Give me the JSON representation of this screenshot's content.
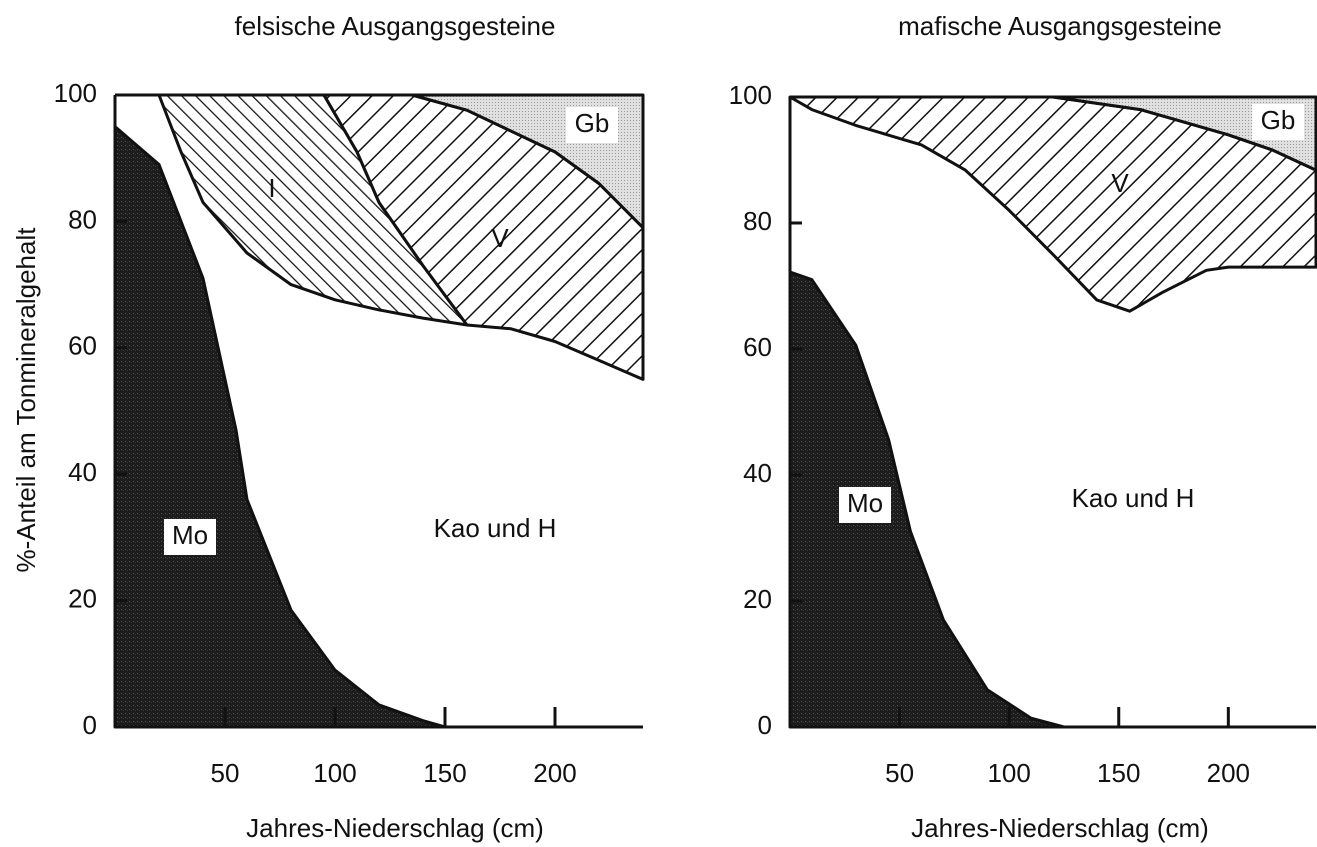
{
  "chart_data": [
    {
      "type": "area",
      "title": "felsische Ausgangsgesteine",
      "xlabel": "Jahres-Niederschlag (cm)",
      "ylabel": "%-Anteil am Tonmineralgehalt",
      "xlim": [
        0,
        240
      ],
      "ylim": [
        0,
        100
      ],
      "xticks": [
        50,
        100,
        150,
        200
      ],
      "yticks": [
        0,
        20,
        40,
        60,
        80,
        100
      ],
      "regions": [
        {
          "name": "Mo",
          "pattern": "dark",
          "x": [
            0,
            20,
            40,
            55,
            60,
            80,
            100,
            120,
            140,
            150,
            0
          ],
          "values": [
            95,
            89,
            71,
            47,
            36,
            18.5,
            9,
            3.5,
            1,
            0,
            0
          ]
        },
        {
          "name": "I",
          "pattern": "hatch-fine",
          "x": [
            20,
            95,
            110,
            120,
            140,
            160,
            140,
            120,
            100,
            80,
            60,
            40,
            30,
            20
          ],
          "values": [
            100,
            100,
            91,
            83,
            73,
            63.6,
            64.7,
            66,
            67.6,
            70,
            75,
            83,
            91,
            100
          ]
        },
        {
          "name": "V",
          "pattern": "hatch",
          "x": [
            95,
            135,
            160,
            200,
            220,
            240,
            240,
            220,
            200,
            180,
            160,
            140,
            120,
            110,
            95
          ],
          "values": [
            100,
            100,
            97.6,
            91,
            86,
            79,
            55,
            58,
            61,
            63,
            63.6,
            73,
            83,
            91,
            100
          ]
        },
        {
          "name": "Gb",
          "pattern": "dots",
          "x": [
            135,
            240,
            240,
            220,
            200,
            160,
            135
          ],
          "values": [
            100,
            100,
            79,
            86,
            91,
            97.6,
            100
          ]
        }
      ],
      "annotations": [
        "Kao und H"
      ]
    },
    {
      "type": "area",
      "title": "mafische Ausgangsgesteine",
      "xlabel": "Jahres-Niederschlag (cm)",
      "xlim": [
        0,
        240
      ],
      "ylim": [
        0,
        100
      ],
      "xticks": [
        50,
        100,
        150,
        200
      ],
      "yticks": [
        0,
        20,
        40,
        60,
        80,
        100
      ],
      "regions": [
        {
          "name": "Mo",
          "pattern": "dark",
          "x": [
            0,
            10,
            30,
            45,
            55,
            70,
            90,
            110,
            125,
            0
          ],
          "values": [
            72.2,
            71,
            60.6,
            45.6,
            31,
            17,
            5.9,
            1.4,
            0,
            0
          ]
        },
        {
          "name": "V",
          "pattern": "hatch",
          "x": [
            0,
            120,
            160,
            200,
            220,
            240,
            240,
            200,
            190,
            170,
            155,
            140,
            120,
            100,
            80,
            60,
            30,
            10,
            0
          ],
          "values": [
            100,
            100,
            98,
            94,
            91.6,
            88.4,
            73,
            73,
            72.5,
            69,
            66,
            67.8,
            75,
            82,
            88.4,
            92.4,
            95.5,
            98,
            100
          ]
        },
        {
          "name": "Gb",
          "pattern": "dots",
          "x": [
            120,
            240,
            240,
            220,
            200,
            160,
            120
          ],
          "values": [
            100,
            100,
            88.4,
            91.6,
            94,
            98,
            100
          ]
        }
      ],
      "annotations": [
        "Kao und H"
      ]
    }
  ]
}
